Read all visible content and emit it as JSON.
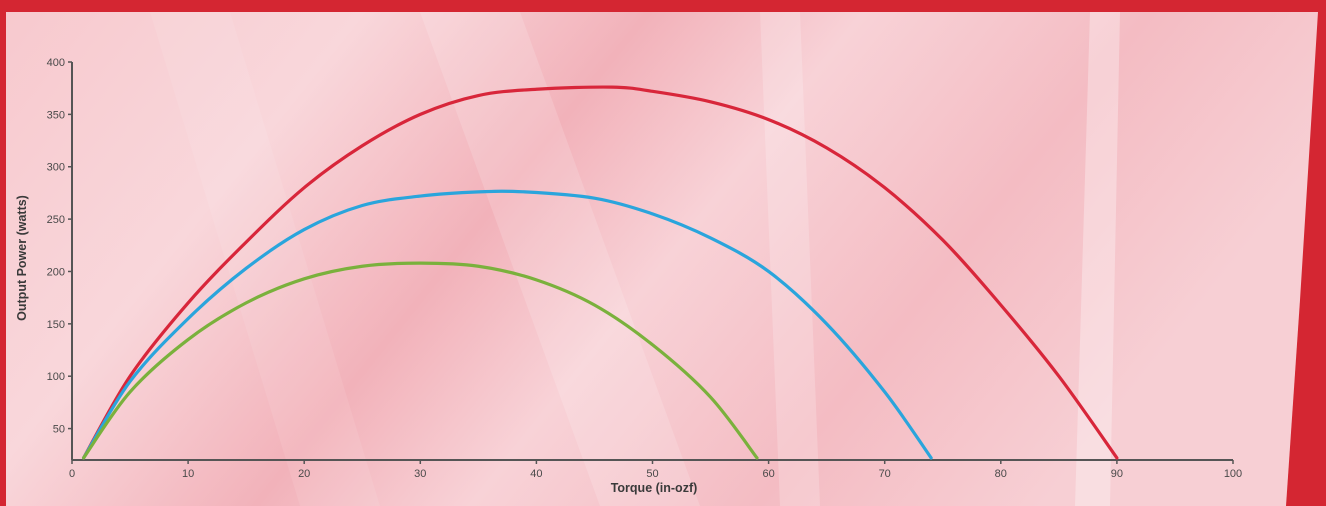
{
  "colors": {
    "frame": "#d42632",
    "panel_light": "#fbe3e6",
    "panel_mid": "#f3b9c0",
    "axis": "#555555"
  },
  "chart_data": {
    "type": "line",
    "xlabel": "Torque (in-ozf)",
    "ylabel": "Output Power (watts)",
    "xlim": [
      0,
      100
    ],
    "ylim": [
      20,
      400
    ],
    "x_ticks": [
      0,
      10,
      20,
      30,
      40,
      50,
      60,
      70,
      80,
      90,
      100
    ],
    "y_ticks": [
      50,
      100,
      150,
      200,
      250,
      300,
      350,
      400
    ],
    "grid": false,
    "series": [
      {
        "color": "#d8263a",
        "x": [
          1,
          5,
          10,
          15,
          20,
          25,
          30,
          35,
          40,
          46.5,
          50,
          55,
          60,
          65,
          70,
          75,
          80,
          85,
          90
        ],
        "y": [
          22,
          100,
          170,
          228,
          280,
          320,
          350,
          368,
          374,
          376,
          372,
          362,
          345,
          318,
          280,
          230,
          168,
          100,
          22
        ]
      },
      {
        "color": "#2aa5dc",
        "x": [
          1,
          5,
          10,
          15,
          20,
          25,
          30,
          35,
          39,
          45,
          50,
          55,
          60,
          65,
          70,
          74
        ],
        "y": [
          22,
          95,
          155,
          203,
          240,
          263,
          272,
          276,
          276,
          270,
          255,
          232,
          200,
          150,
          85,
          22
        ]
      },
      {
        "color": "#7ab13c",
        "x": [
          1,
          5,
          10,
          15,
          20,
          25,
          30,
          35,
          40,
          45,
          50,
          55,
          59
        ],
        "y": [
          22,
          85,
          135,
          170,
          193,
          205,
          208,
          205,
          192,
          168,
          130,
          80,
          22
        ]
      }
    ]
  }
}
